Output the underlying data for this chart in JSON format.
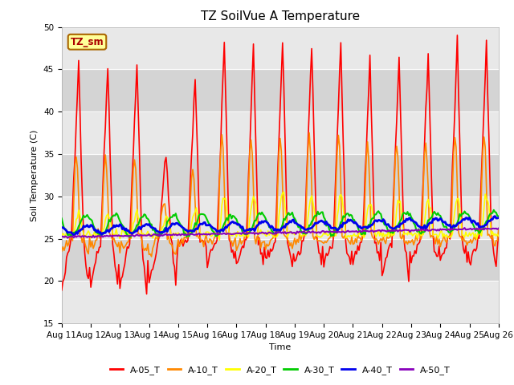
{
  "title": "TZ SoilVue A Temperature",
  "xlabel": "Time",
  "ylabel": "Soil Temperature (C)",
  "ylim": [
    15,
    50
  ],
  "xlim": [
    0,
    360
  ],
  "yticks": [
    15,
    20,
    25,
    30,
    35,
    40,
    45,
    50
  ],
  "xtick_labels": [
    "Aug 11",
    "Aug 12",
    "Aug 13",
    "Aug 14",
    "Aug 15",
    "Aug 16",
    "Aug 17",
    "Aug 18",
    "Aug 19",
    "Aug 20",
    "Aug 21",
    "Aug 22",
    "Aug 23",
    "Aug 24",
    "Aug 25",
    "Aug 26"
  ],
  "xtick_positions": [
    0,
    24,
    48,
    72,
    96,
    120,
    144,
    168,
    192,
    216,
    240,
    264,
    288,
    312,
    336,
    360
  ],
  "series_colors": [
    "#ff0000",
    "#ff8800",
    "#ffff00",
    "#00cc00",
    "#0000ee",
    "#8800bb"
  ],
  "series_labels": [
    "A-05_T",
    "A-10_T",
    "A-20_T",
    "A-30_T",
    "A-40_T",
    "A-50_T"
  ],
  "series_linewidths": [
    1.2,
    1.2,
    1.2,
    1.5,
    2.0,
    1.5
  ],
  "annotation_text": "TZ_sm",
  "annotation_color": "#aa0000",
  "annotation_bg": "#ffff99",
  "annotation_border": "#aa6600",
  "band_colors": [
    "#e8e8e8",
    "#d8d8d8"
  ],
  "grid_color": "#ffffff",
  "title_fontsize": 11,
  "axis_fontsize": 8,
  "tick_fontsize": 7.5
}
